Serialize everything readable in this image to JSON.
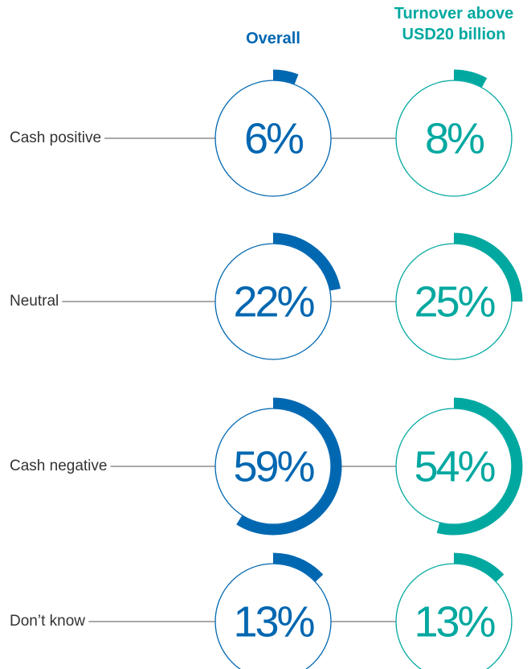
{
  "chart_data": {
    "type": "gauge",
    "categories": [
      "Cash positive",
      "Neutral",
      "Cash negative",
      "Don’t know"
    ],
    "series": [
      {
        "name": "Overall",
        "color": "#0067b1",
        "values": [
          6,
          22,
          59,
          13
        ],
        "value_labels": [
          "6%",
          "22%",
          "59%",
          "13%"
        ]
      },
      {
        "name": "Turnover above USD20 billion",
        "color": "#00a8a0",
        "values": [
          8,
          25,
          54,
          13
        ],
        "value_labels": [
          "8%",
          "25%",
          "54%",
          "13%"
        ]
      }
    ]
  }
}
